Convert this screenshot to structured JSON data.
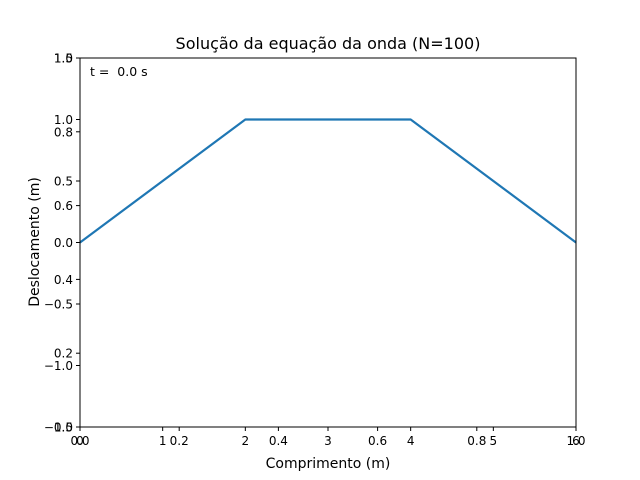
{
  "chart_data": {
    "type": "line",
    "title": "Solução da equação da onda (N=100)",
    "xlabel": "Comprimento (m)",
    "ylabel": "Deslocamento (m)",
    "annotation": "t =  0.0 s",
    "xlim": [
      0,
      6
    ],
    "ylim": [
      -1.5,
      1.5
    ],
    "grid": false,
    "x_ticks": [
      {
        "value": 0,
        "label": "0"
      },
      {
        "value": 1,
        "label": "1"
      },
      {
        "value": 2,
        "label": "2"
      },
      {
        "value": 3,
        "label": "3"
      },
      {
        "value": 4,
        "label": "4"
      },
      {
        "value": 5,
        "label": "5"
      },
      {
        "value": 6,
        "label": "6"
      }
    ],
    "y_ticks": [
      {
        "value": -1.5,
        "label": "−1.5"
      },
      {
        "value": -1.0,
        "label": "−1.0"
      },
      {
        "value": -0.5,
        "label": "−0.5"
      },
      {
        "value": 0.0,
        "label": "0.0"
      },
      {
        "value": 0.5,
        "label": "0.5"
      },
      {
        "value": 1.0,
        "label": "1.0"
      },
      {
        "value": 1.5,
        "label": "1.5"
      }
    ],
    "overlay_x_ticks": [
      {
        "value": 0.0,
        "label": "0.0"
      },
      {
        "value": 0.2,
        "label": "0.2"
      },
      {
        "value": 0.4,
        "label": "0.4"
      },
      {
        "value": 0.6,
        "label": "0.6"
      },
      {
        "value": 0.8,
        "label": "0.8"
      },
      {
        "value": 1.0,
        "label": "1.0"
      }
    ],
    "overlay_y_ticks": [
      {
        "value": 0.0,
        "label": "0.0"
      },
      {
        "value": 0.2,
        "label": "0.2"
      },
      {
        "value": 0.4,
        "label": "0.4"
      },
      {
        "value": 0.6,
        "label": "0.6"
      },
      {
        "value": 0.8,
        "label": "0.8"
      },
      {
        "value": 1.0,
        "label": "1.0"
      }
    ],
    "series": [
      {
        "color": "#1f77b4",
        "x": [
          0,
          2,
          4,
          6
        ],
        "y": [
          0,
          1,
          1,
          0
        ]
      }
    ]
  }
}
